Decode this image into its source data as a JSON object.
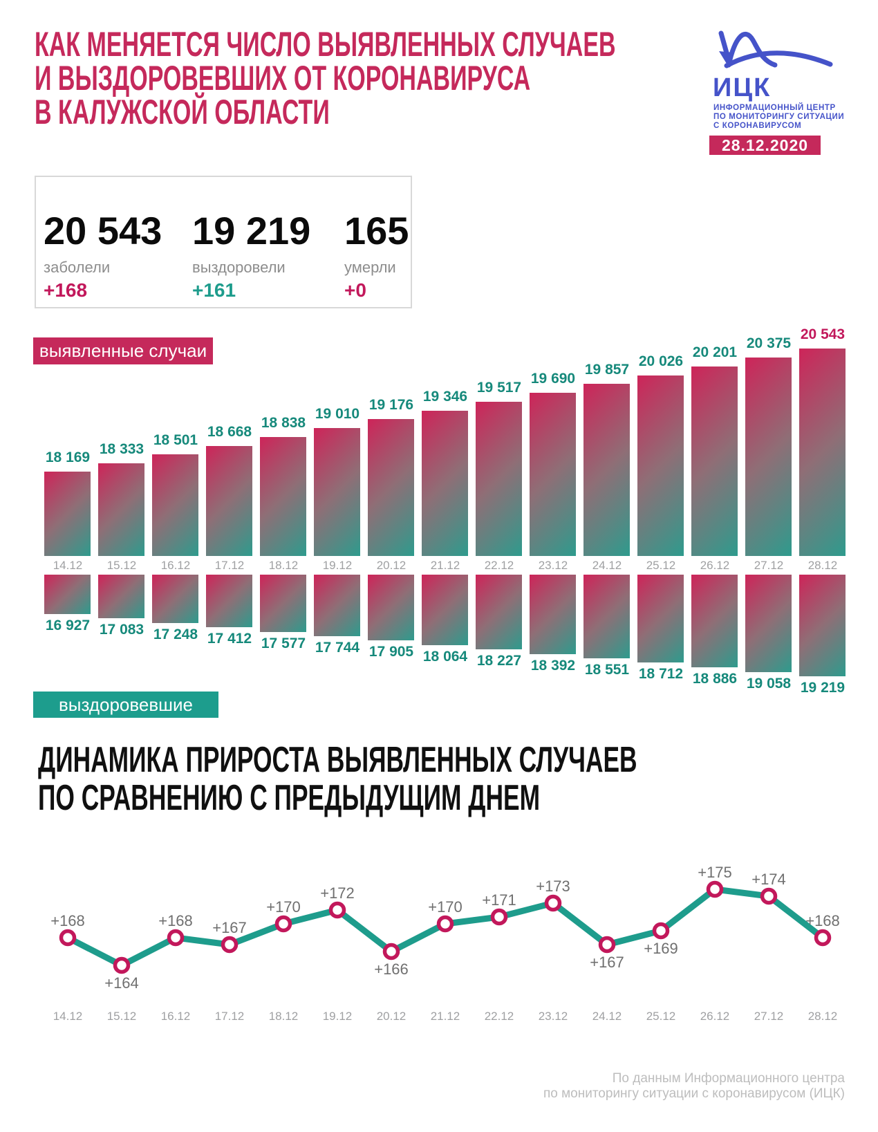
{
  "header": {
    "title_lines": [
      "КАК МЕНЯЕТСЯ ЧИСЛО ВЫЯВЛЕННЫХ СЛУЧАЕВ",
      "И ВЫЗДОРОВЕВШИХ ОТ КОРОНАВИРУСА",
      "В КАЛУЖСКОЙ ОБЛАСТИ"
    ],
    "logo": {
      "abbr": "ИЦК",
      "org_lines": [
        "ИНФОРМАЦИОННЫЙ ЦЕНТР",
        "ПО МОНИТОРИНГУ СИТУАЦИИ",
        "С КОРОНАВИРУСОМ"
      ],
      "date": "28.12.2020"
    }
  },
  "summary": {
    "cases": {
      "value": "20 543",
      "label": "заболели",
      "delta": "+168",
      "delta_color": "crimson_deep"
    },
    "recovered": {
      "value": "19 219",
      "label": "выздоровели",
      "delta": "+161",
      "delta_color": "line_teal"
    },
    "deaths": {
      "value": "165",
      "label": "умерли",
      "delta": "+0",
      "delta_color": "crimson_deep"
    }
  },
  "legends": {
    "detected": "выявленные случаи",
    "recovered": "выздоровевшие"
  },
  "section2_title_lines": [
    "ДИНАМИКА ПРИРОСТА ВЫЯВЛЕННЫХ СЛУЧАЕВ",
    "ПО СРАВНЕНИЮ С ПРЕДЫДУЩИМ ДНЕМ"
  ],
  "footer_lines": [
    "По данным Информационного центра",
    "по мониторингу ситуации с коронавирусом (ИЦК)"
  ],
  "colors": {
    "crimson_main": "#c5295b",
    "crimson_deep": "#c2185b",
    "teal_badge": "#1d9d8d",
    "teal_text": "#16897b",
    "line_teal": "#1e9c8c",
    "logo_blue": "#4553c9",
    "gray_date": "#9fa0a2",
    "gray_label": "#8d8d8d",
    "gray_value": "#6f6f6f",
    "footer_gray": "#bdbdbd",
    "border_gray": "#d8d8d8",
    "ink": "#0b0b0b",
    "bar_from": "#ce2459",
    "bar_mid": "#8f6e76",
    "bar_to": "#2e9b8d"
  },
  "chart_data": [
    {
      "type": "bar",
      "title": "Выявленные случаи и выздоровевшие по дням",
      "categories": [
        "14.12",
        "15.12",
        "16.12",
        "17.12",
        "18.12",
        "19.12",
        "20.12",
        "21.12",
        "22.12",
        "23.12",
        "24.12",
        "25.12",
        "26.12",
        "27.12",
        "28.12"
      ],
      "series": [
        {
          "name": "выявленные случаи",
          "values": [
            18169,
            18333,
            18501,
            18668,
            18838,
            19010,
            19176,
            19346,
            19517,
            19690,
            19857,
            20026,
            20201,
            20375,
            20543
          ],
          "direction": "up",
          "highlight_last": true
        },
        {
          "name": "выздоровевшие",
          "values": [
            16927,
            17083,
            17248,
            17412,
            17577,
            17744,
            17905,
            18064,
            18227,
            18392,
            18551,
            18712,
            18886,
            19058,
            19219
          ],
          "direction": "down",
          "highlight_last": false
        }
      ],
      "grid": false,
      "legend_position": "badges-left"
    },
    {
      "type": "line",
      "title": "ДИНАМИКА ПРИРОСТА ВЫЯВЛЕННЫХ СЛУЧАЕВ ПО СРАВНЕНИЮ С ПРЕДЫДУЩИМ ДНЕМ",
      "categories": [
        "14.12",
        "15.12",
        "16.12",
        "17.12",
        "18.12",
        "19.12",
        "20.12",
        "21.12",
        "22.12",
        "23.12",
        "24.12",
        "25.12",
        "26.12",
        "27.12",
        "28.12"
      ],
      "values": [
        168,
        164,
        168,
        167,
        170,
        172,
        166,
        170,
        171,
        173,
        167,
        169,
        175,
        174,
        168
      ],
      "label_prefix": "+",
      "label_below": [
        false,
        true,
        false,
        false,
        false,
        false,
        true,
        false,
        false,
        false,
        true,
        true,
        false,
        false,
        false
      ],
      "ylim": [
        160,
        180
      ],
      "grid": false
    }
  ]
}
